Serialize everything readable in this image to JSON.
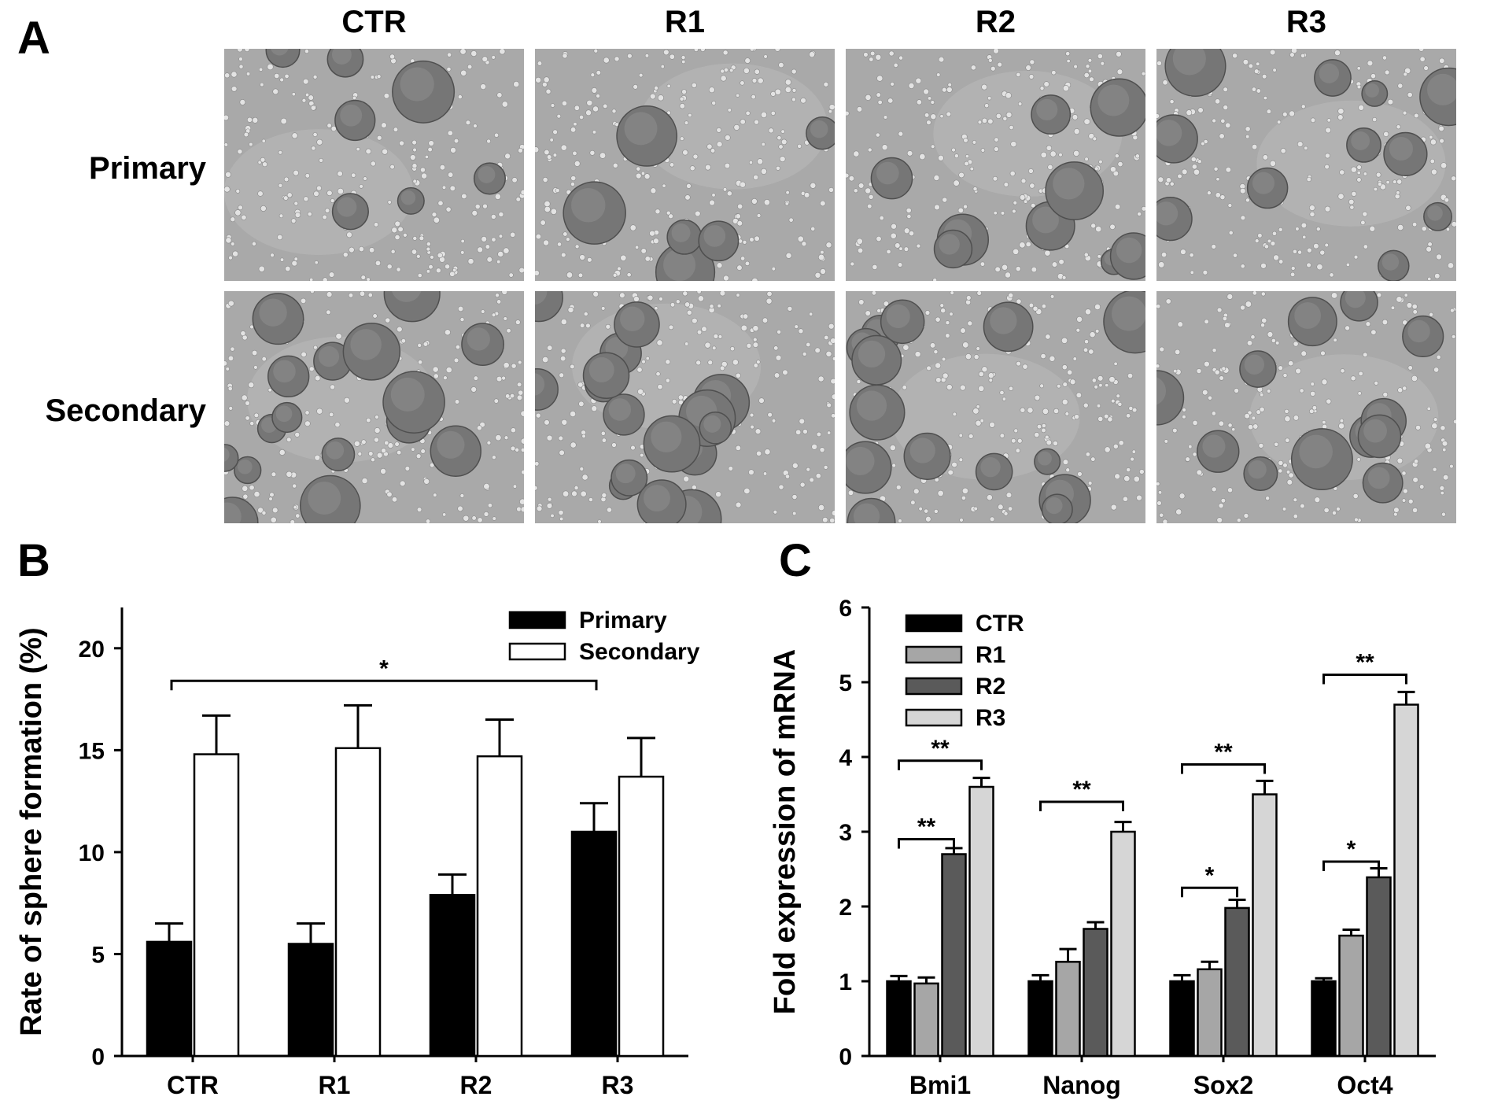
{
  "panel_a": {
    "letter": "A",
    "columns": [
      "CTR",
      "R1",
      "R2",
      "R3"
    ],
    "rows": [
      "Primary",
      "Secondary"
    ],
    "tile_color": "#a9a9a9",
    "sphere_color": "#767676"
  },
  "chart_data": [
    {
      "panel": "B",
      "type": "bar",
      "ylabel": "Rate of sphere formation (%)",
      "xlabel": "",
      "categories": [
        "CTR",
        "R1",
        "R2",
        "R3"
      ],
      "ylim": [
        0,
        22
      ],
      "yticks": [
        0,
        5,
        10,
        15,
        20
      ],
      "legend_position": "top-right",
      "grid": false,
      "series": [
        {
          "name": "Primary",
          "color": "#000000",
          "values": [
            5.6,
            5.5,
            7.9,
            11.0
          ],
          "errors": [
            0.9,
            1.0,
            1.0,
            1.4
          ]
        },
        {
          "name": "Secondary",
          "color": "#ffffff",
          "values": [
            14.8,
            15.1,
            14.7,
            13.7
          ],
          "errors": [
            1.9,
            2.1,
            1.8,
            1.9
          ]
        }
      ],
      "annotations": [
        {
          "from": 0,
          "to": 3,
          "y": 18.4,
          "label": "*"
        }
      ]
    },
    {
      "panel": "C",
      "type": "bar",
      "ylabel": "Fold expression of mRNA",
      "xlabel": "",
      "categories": [
        "Bmi1",
        "Nanog",
        "Sox2",
        "Oct4"
      ],
      "ylim": [
        0,
        6
      ],
      "yticks": [
        0,
        1,
        2,
        3,
        4,
        5,
        6
      ],
      "legend_position": "top-left",
      "grid": false,
      "series": [
        {
          "name": "CTR",
          "color": "#000000",
          "values": [
            1.0,
            1.0,
            1.0,
            1.0
          ],
          "errors": [
            0.07,
            0.08,
            0.08,
            0.04
          ]
        },
        {
          "name": "R1",
          "color": "#a6a6a6",
          "values": [
            0.97,
            1.26,
            1.16,
            1.61
          ],
          "errors": [
            0.08,
            0.17,
            0.1,
            0.08
          ]
        },
        {
          "name": "R2",
          "color": "#5a5a5a",
          "values": [
            2.7,
            1.7,
            1.98,
            2.39
          ],
          "errors": [
            0.08,
            0.09,
            0.11,
            0.12
          ]
        },
        {
          "name": "R3",
          "color": "#d6d6d6",
          "values": [
            3.6,
            3.0,
            3.5,
            4.7
          ],
          "errors": [
            0.12,
            0.13,
            0.18,
            0.17
          ]
        }
      ],
      "annotations": [
        {
          "group": 0,
          "from": 0,
          "to": 2,
          "y": 2.9,
          "label": "**"
        },
        {
          "group": 0,
          "from": 0,
          "to": 3,
          "y": 3.95,
          "label": "**"
        },
        {
          "group": 1,
          "from": 0,
          "to": 3,
          "y": 3.4,
          "label": "**"
        },
        {
          "group": 2,
          "from": 0,
          "to": 2,
          "y": 2.25,
          "label": "*"
        },
        {
          "group": 2,
          "from": 0,
          "to": 3,
          "y": 3.9,
          "label": "**"
        },
        {
          "group": 3,
          "from": 0,
          "to": 2,
          "y": 2.6,
          "label": "*"
        },
        {
          "group": 3,
          "from": 0,
          "to": 3,
          "y": 5.1,
          "label": "**"
        }
      ]
    }
  ]
}
